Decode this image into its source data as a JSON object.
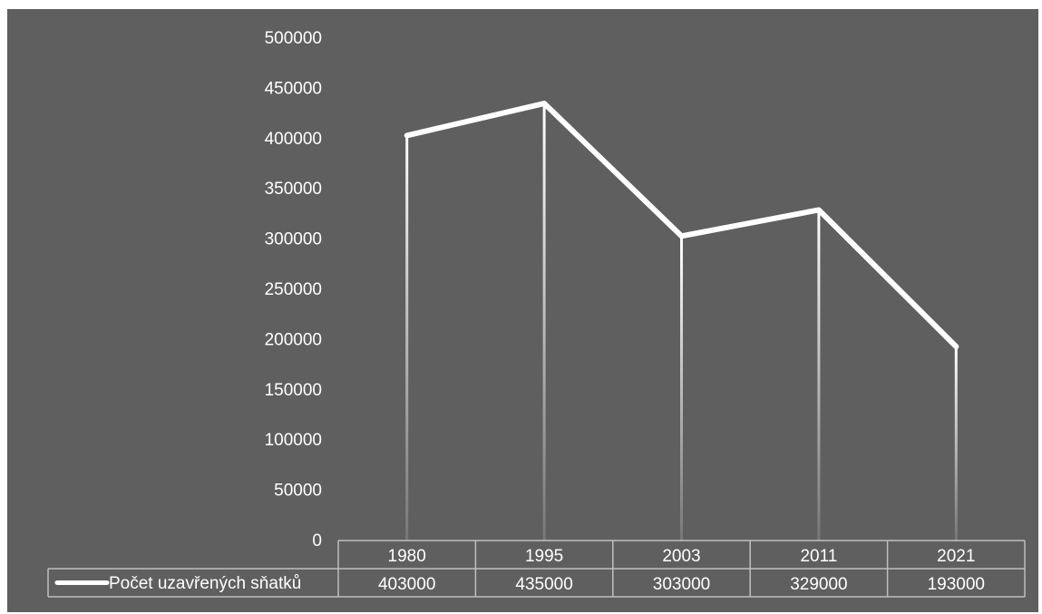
{
  "chart_data": {
    "type": "line",
    "categories": [
      "1980",
      "1995",
      "2003",
      "2011",
      "2021"
    ],
    "series": [
      {
        "name": "Počet uzavřených sňatků",
        "values": [
          403000,
          435000,
          303000,
          329000,
          193000
        ]
      }
    ],
    "data_table": {
      "row_label": "Počet uzavřených sňatků",
      "cells": [
        "403000",
        "435000",
        "303000",
        "329000",
        "193000"
      ]
    },
    "y_ticks": [
      "0",
      "50000",
      "100000",
      "150000",
      "200000",
      "250000",
      "300000",
      "350000",
      "400000",
      "450000",
      "500000"
    ],
    "ylim": [
      0,
      500000
    ],
    "drop_lines": true,
    "grid": false,
    "legend": "in data table",
    "colors": {
      "background": "#5f5f5f",
      "line": "#ffffff",
      "drop_line": "#ffffff",
      "table_border": "#bfbfbf"
    }
  }
}
